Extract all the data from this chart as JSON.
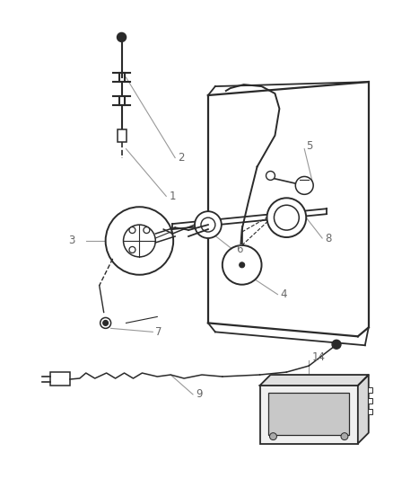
{
  "bg_color": "#ffffff",
  "line_color": "#2a2a2a",
  "label_color": "#666666",
  "leader_color": "#999999",
  "fig_width": 4.38,
  "fig_height": 5.33,
  "dpi": 100
}
